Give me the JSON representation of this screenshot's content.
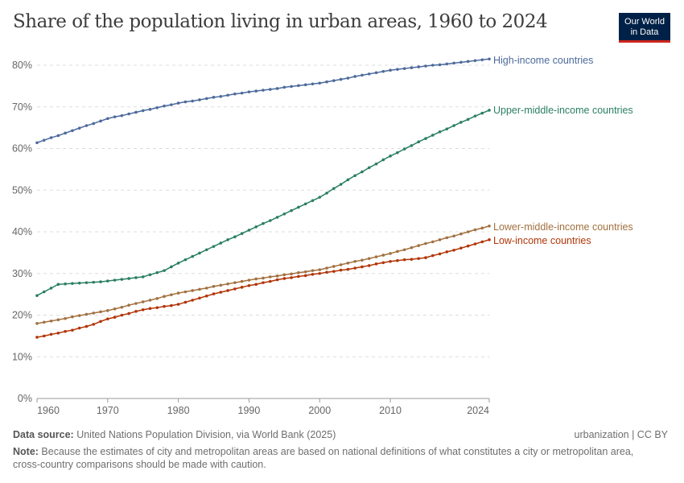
{
  "title": "Share of the population living in urban areas, 1960 to 2024",
  "logo": {
    "line1": "Our World",
    "line2": "in Data"
  },
  "footer": {
    "source_label": "Data source:",
    "source_text": " United Nations Population Division, via World Bank (2025)",
    "license": "urbanization | CC BY",
    "note_label": "Note:",
    "note_text": " Because the estimates of city and metropolitan areas are based on national definitions of what constitutes a city or metropolitan area, cross-country comparisons should be made with caution."
  },
  "chart_data": {
    "type": "line",
    "title": "Share of the population living in urban areas, 1960 to 2024",
    "xlim": [
      1960,
      2024
    ],
    "ylim": [
      0,
      80
    ],
    "xticks": [
      1960,
      1970,
      1980,
      1990,
      2000,
      2010,
      2024
    ],
    "yticks": [
      0,
      10,
      20,
      30,
      40,
      50,
      60,
      70,
      80
    ],
    "ytick_labels": [
      "0%",
      "10%",
      "20%",
      "30%",
      "40%",
      "50%",
      "60%",
      "70%",
      "80%"
    ],
    "grid": "horizontal dashed",
    "legend": "right, labels at line ends",
    "x_start": 1960,
    "series": [
      {
        "name": "High-income countries",
        "color": "#4c6a9c",
        "values": [
          61.4,
          62.0,
          62.6,
          63.1,
          63.7,
          64.3,
          64.9,
          65.5,
          66.0,
          66.6,
          67.2,
          67.6,
          67.9,
          68.3,
          68.7,
          69.1,
          69.4,
          69.8,
          70.2,
          70.5,
          70.9,
          71.2,
          71.4,
          71.7,
          72.0,
          72.3,
          72.5,
          72.8,
          73.1,
          73.3,
          73.6,
          73.8,
          74.0,
          74.2,
          74.4,
          74.7,
          74.9,
          75.1,
          75.3,
          75.5,
          75.7,
          76.0,
          76.3,
          76.6,
          76.9,
          77.3,
          77.6,
          77.9,
          78.2,
          78.5,
          78.8,
          79.0,
          79.2,
          79.4,
          79.6,
          79.8,
          80.0,
          80.1,
          80.3,
          80.5,
          80.7,
          80.9,
          81.1,
          81.3,
          81.5
        ]
      },
      {
        "name": "Upper-middle-income countries",
        "color": "#2a7f62",
        "values": [
          24.7,
          25.6,
          26.5,
          27.4,
          27.5,
          27.6,
          27.7,
          27.8,
          27.9,
          28.0,
          28.2,
          28.4,
          28.6,
          28.8,
          29.0,
          29.2,
          29.7,
          30.2,
          30.7,
          31.6,
          32.5,
          33.3,
          34.1,
          34.9,
          35.7,
          36.5,
          37.3,
          38.1,
          38.8,
          39.6,
          40.4,
          41.2,
          42.0,
          42.7,
          43.5,
          44.3,
          45.1,
          45.9,
          46.7,
          47.5,
          48.3,
          49.3,
          50.4,
          51.4,
          52.5,
          53.5,
          54.4,
          55.4,
          56.3,
          57.3,
          58.2,
          59.0,
          59.9,
          60.7,
          61.6,
          62.4,
          63.2,
          64.0,
          64.7,
          65.5,
          66.3,
          67.0,
          67.8,
          68.5,
          69.2
        ]
      },
      {
        "name": "Lower-middle-income countries",
        "color": "#a2703f",
        "values": [
          18.0,
          18.3,
          18.6,
          18.9,
          19.2,
          19.6,
          19.9,
          20.2,
          20.5,
          20.8,
          21.1,
          21.5,
          21.9,
          22.4,
          22.8,
          23.2,
          23.6,
          24.0,
          24.5,
          24.9,
          25.3,
          25.6,
          25.9,
          26.2,
          26.5,
          26.9,
          27.2,
          27.5,
          27.8,
          28.1,
          28.4,
          28.7,
          28.9,
          29.2,
          29.4,
          29.7,
          29.9,
          30.2,
          30.4,
          30.7,
          30.9,
          31.3,
          31.7,
          32.1,
          32.5,
          32.9,
          33.2,
          33.6,
          34.0,
          34.4,
          34.8,
          35.3,
          35.7,
          36.2,
          36.7,
          37.2,
          37.6,
          38.1,
          38.6,
          39.0,
          39.5,
          40.0,
          40.5,
          40.9,
          41.4
        ]
      },
      {
        "name": "Low-income countries",
        "color": "#b13507",
        "values": [
          14.7,
          15.0,
          15.4,
          15.7,
          16.1,
          16.4,
          16.9,
          17.3,
          17.8,
          18.5,
          19.1,
          19.5,
          20.0,
          20.4,
          20.9,
          21.3,
          21.6,
          21.8,
          22.1,
          22.3,
          22.6,
          23.1,
          23.6,
          24.1,
          24.6,
          25.1,
          25.5,
          25.9,
          26.3,
          26.7,
          27.1,
          27.4,
          27.8,
          28.1,
          28.5,
          28.8,
          29.0,
          29.3,
          29.5,
          29.8,
          30.0,
          30.3,
          30.5,
          30.8,
          31.0,
          31.3,
          31.6,
          31.9,
          32.3,
          32.6,
          32.9,
          33.1,
          33.3,
          33.4,
          33.6,
          33.8,
          34.3,
          34.7,
          35.2,
          35.6,
          36.1,
          36.6,
          37.1,
          37.6,
          38.1
        ]
      }
    ]
  }
}
